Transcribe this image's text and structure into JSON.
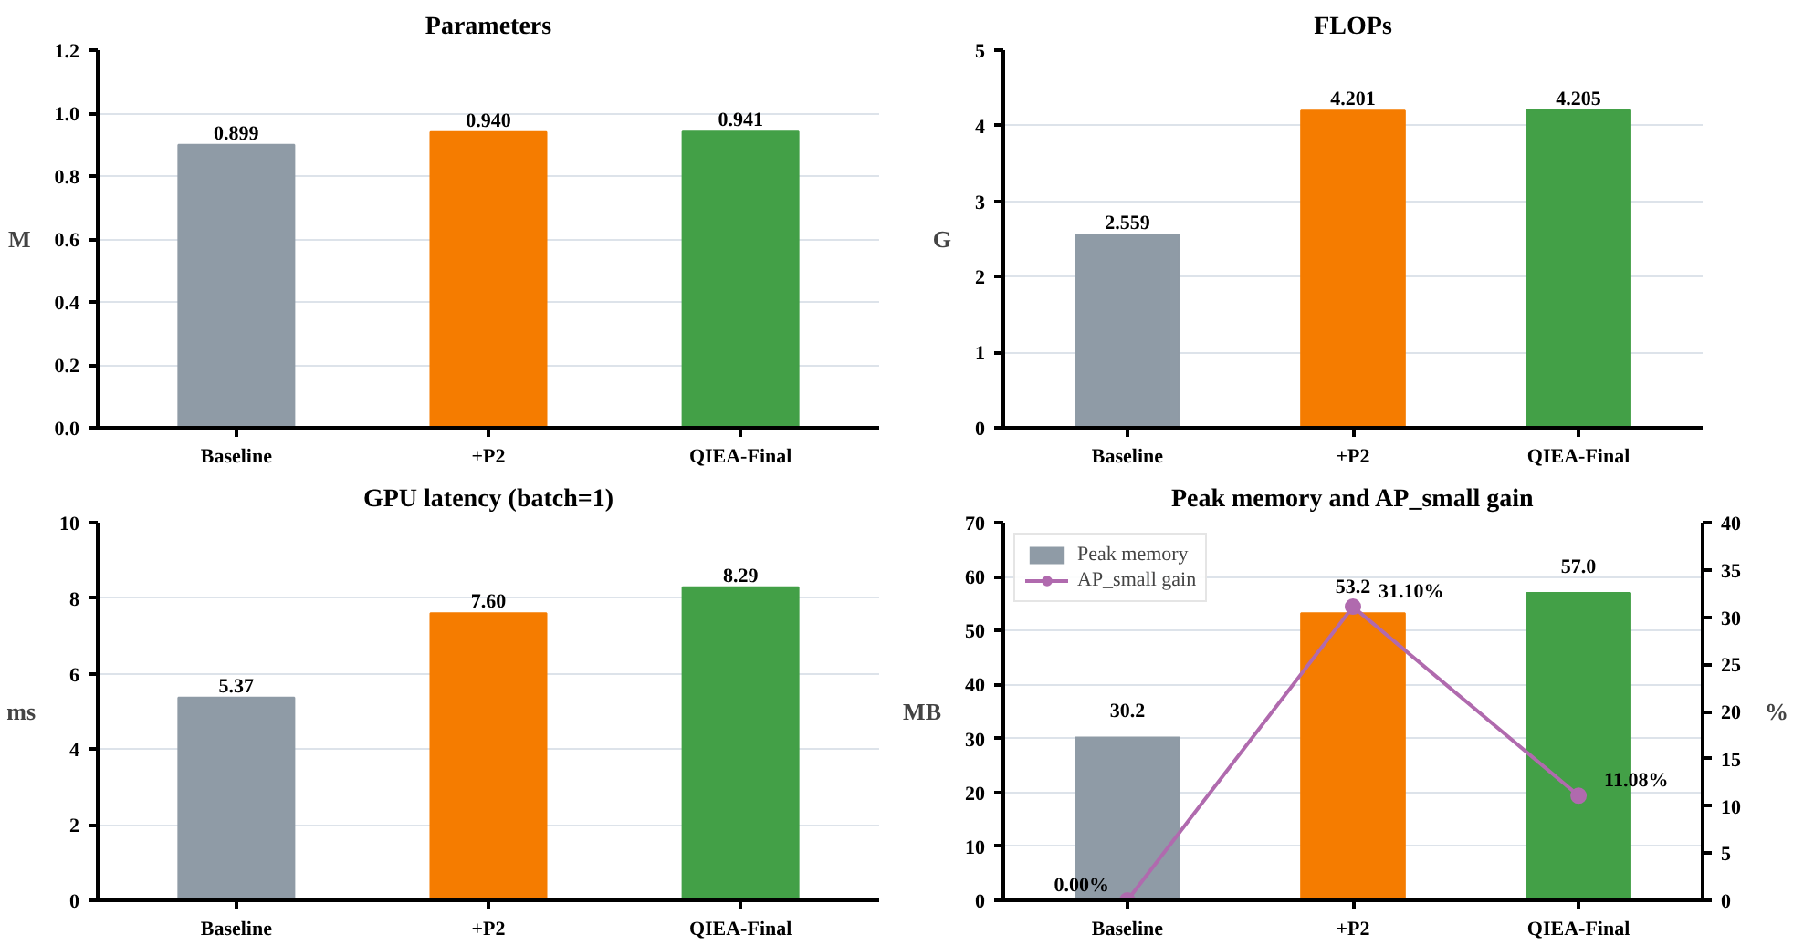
{
  "chart_data": [
    {
      "type": "bar",
      "title": "Parameters",
      "ylabel": "M",
      "categories": [
        "Baseline",
        "+P2",
        "QIEA-Final"
      ],
      "series": [
        {
          "colors": [
            "#8f9ba6",
            "#f57c00",
            "#43a047"
          ],
          "values": [
            0.899,
            0.94,
            0.941
          ],
          "value_labels": [
            "0.899",
            "0.940",
            "0.941"
          ]
        }
      ],
      "ylim": [
        0,
        1.2
      ],
      "yticks": [
        {
          "value": 0,
          "label": "0.0"
        },
        0.2,
        0.4,
        0.6,
        0.8,
        {
          "value": 1,
          "label": "1.0"
        },
        1.2
      ],
      "grid": "y"
    },
    {
      "type": "bar",
      "title": "FLOPs",
      "ylabel": "G",
      "categories": [
        "Baseline",
        "+P2",
        "QIEA-Final"
      ],
      "series": [
        {
          "colors": [
            "#8f9ba6",
            "#f57c00",
            "#43a047"
          ],
          "values": [
            2.559,
            4.201,
            4.205
          ],
          "value_labels": [
            "2.559",
            "4.201",
            "4.205"
          ]
        }
      ],
      "ylim": [
        0,
        5
      ],
      "yticks": [
        0,
        1,
        2,
        3,
        4,
        5
      ],
      "grid": "y"
    },
    {
      "type": "bar",
      "title": "GPU latency (batch=1)",
      "ylabel": "ms",
      "categories": [
        "Baseline",
        "+P2",
        "QIEA-Final"
      ],
      "series": [
        {
          "colors": [
            "#8f9ba6",
            "#f57c00",
            "#43a047"
          ],
          "values": [
            5.37,
            7.6,
            8.29
          ],
          "value_labels": [
            "5.37",
            "7.60",
            "8.29"
          ]
        }
      ],
      "ylim": [
        0,
        10
      ],
      "yticks": [
        0,
        2,
        4,
        6,
        8,
        10
      ],
      "grid": "y"
    },
    {
      "type": "bar",
      "title": "Peak memory and AP_small gain",
      "ylabel": "MB",
      "y2label": "%",
      "categories": [
        "Baseline",
        "+P2",
        "QIEA-Final"
      ],
      "series": [
        {
          "name": "Peak memory",
          "color": "#8f9ba6",
          "colors": [
            "#8f9ba6",
            "#f57c00",
            "#43a047"
          ],
          "values": [
            30.2,
            53.2,
            57.0
          ],
          "value_labels": [
            "30.2",
            "53.2",
            "57.0"
          ]
        },
        {
          "type": "line",
          "name": "AP_small gain",
          "color": "#b06aae",
          "axis": "y2",
          "marker": "circle",
          "values": [
            0.0,
            31.1,
            11.08
          ],
          "value_labels": [
            "0.00%",
            "31.10%",
            "11.08%"
          ]
        }
      ],
      "ylim": [
        0,
        70
      ],
      "yticks": [
        0,
        10,
        20,
        30,
        40,
        50,
        60,
        70
      ],
      "y2lim": [
        0,
        40
      ],
      "y2ticks": [
        0,
        5,
        10,
        15,
        20,
        25,
        30,
        35,
        40
      ],
      "grid": "y",
      "legend": "top left"
    }
  ]
}
